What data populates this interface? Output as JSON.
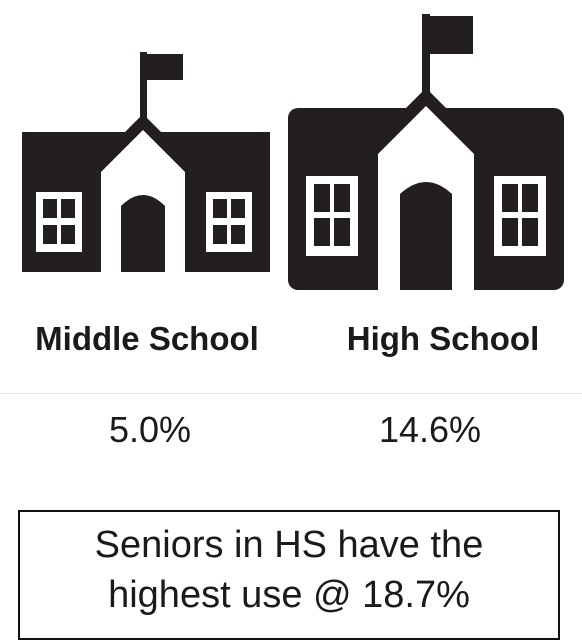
{
  "schools": [
    {
      "label": "Middle School",
      "value": "5.0%",
      "icon": "school-building-icon"
    },
    {
      "label": "High School",
      "value": "14.6%",
      "icon": "school-building-icon"
    }
  ],
  "note": {
    "line1": "Seniors in HS have the",
    "line2": "highest use @ 18.7%"
  },
  "colors": {
    "icon": "#231f20",
    "text": "#1a1a1a",
    "divider": "#dbe7f1"
  }
}
